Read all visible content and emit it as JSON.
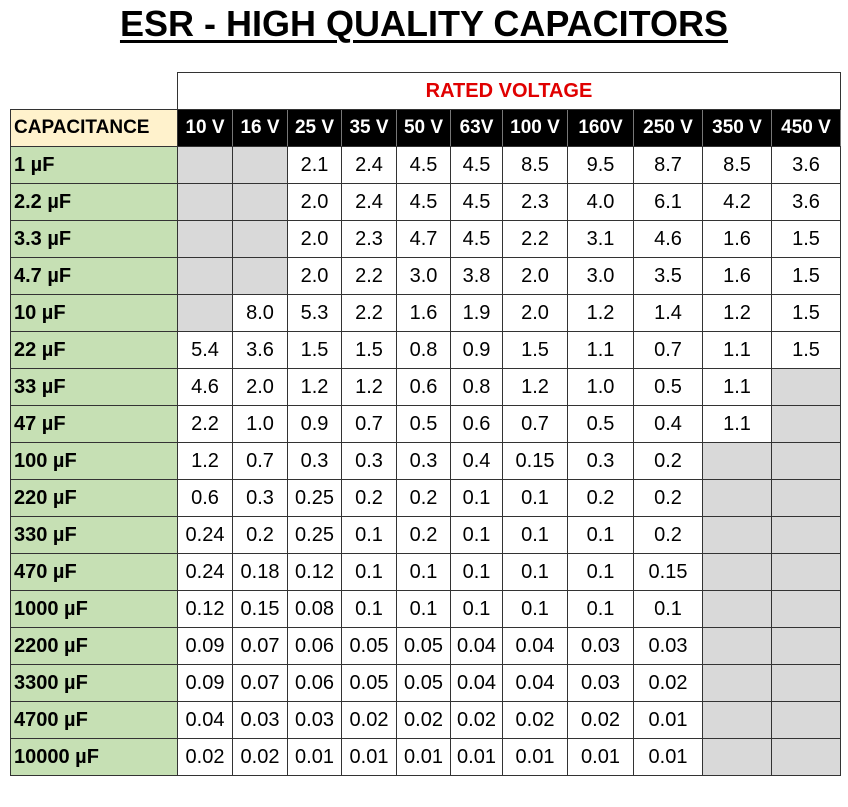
{
  "title": "ESR - HIGH QUALITY CAPACITORS",
  "rated_voltage_label": "RATED VOLTAGE",
  "capacitance_label": "CAPACITANCE",
  "colors": {
    "header_bg": "#000000",
    "cap_bg": "#c6e0b4",
    "cap_header_bg": "#fff2cc",
    "na_bg": "#d9d9d9",
    "rated_text": "#e00000"
  },
  "voltages": [
    "10 V",
    "16 V",
    "25 V",
    "35 V",
    "50 V",
    "63V",
    "100 V",
    "160V",
    "250 V",
    "350 V",
    "450 V"
  ],
  "rows": [
    {
      "cap": "1 µF",
      "values": [
        "",
        "",
        "2.1",
        "2.4",
        "4.5",
        "4.5",
        "8.5",
        "9.5",
        "8.7",
        "8.5",
        "3.6"
      ]
    },
    {
      "cap": "2.2 µF",
      "values": [
        "",
        "",
        "2.0",
        "2.4",
        "4.5",
        "4.5",
        "2.3",
        "4.0",
        "6.1",
        "4.2",
        "3.6"
      ]
    },
    {
      "cap": "3.3 µF",
      "values": [
        "",
        "",
        "2.0",
        "2.3",
        "4.7",
        "4.5",
        "2.2",
        "3.1",
        "4.6",
        "1.6",
        "1.5"
      ]
    },
    {
      "cap": "4.7 µF",
      "values": [
        "",
        "",
        "2.0",
        "2.2",
        "3.0",
        "3.8",
        "2.0",
        "3.0",
        "3.5",
        "1.6",
        "1.5"
      ]
    },
    {
      "cap": "10 µF",
      "values": [
        "",
        "8.0",
        "5.3",
        "2.2",
        "1.6",
        "1.9",
        "2.0",
        "1.2",
        "1.4",
        "1.2",
        "1.5"
      ]
    },
    {
      "cap": "22 µF",
      "values": [
        "5.4",
        "3.6",
        "1.5",
        "1.5",
        "0.8",
        "0.9",
        "1.5",
        "1.1",
        "0.7",
        "1.1",
        "1.5"
      ]
    },
    {
      "cap": "33 µF",
      "values": [
        "4.6",
        "2.0",
        "1.2",
        "1.2",
        "0.6",
        "0.8",
        "1.2",
        "1.0",
        "0.5",
        "1.1",
        ""
      ]
    },
    {
      "cap": "47 µF",
      "values": [
        "2.2",
        "1.0",
        "0.9",
        "0.7",
        "0.5",
        "0.6",
        "0.7",
        "0.5",
        "0.4",
        "1.1",
        ""
      ]
    },
    {
      "cap": "100 µF",
      "values": [
        "1.2",
        "0.7",
        "0.3",
        "0.3",
        "0.3",
        "0.4",
        "0.15",
        "0.3",
        "0.2",
        "",
        ""
      ]
    },
    {
      "cap": "220 µF",
      "values": [
        "0.6",
        "0.3",
        "0.25",
        "0.2",
        "0.2",
        "0.1",
        "0.1",
        "0.2",
        "0.2",
        "",
        ""
      ]
    },
    {
      "cap": "330 µF",
      "values": [
        "0.24",
        "0.2",
        "0.25",
        "0.1",
        "0.2",
        "0.1",
        "0.1",
        "0.1",
        "0.2",
        "",
        ""
      ]
    },
    {
      "cap": "470 µF",
      "values": [
        "0.24",
        "0.18",
        "0.12",
        "0.1",
        "0.1",
        "0.1",
        "0.1",
        "0.1",
        "0.15",
        "",
        ""
      ]
    },
    {
      "cap": "1000 µF",
      "values": [
        "0.12",
        "0.15",
        "0.08",
        "0.1",
        "0.1",
        "0.1",
        "0.1",
        "0.1",
        "0.1",
        "",
        ""
      ]
    },
    {
      "cap": "2200 µF",
      "values": [
        "0.09",
        "0.07",
        "0.06",
        "0.05",
        "0.05",
        "0.04",
        "0.04",
        "0.03",
        "0.03",
        "",
        ""
      ]
    },
    {
      "cap": "3300 µF",
      "values": [
        "0.09",
        "0.07",
        "0.06",
        "0.05",
        "0.05",
        "0.04",
        "0.04",
        "0.03",
        "0.02",
        "",
        ""
      ]
    },
    {
      "cap": "4700 µF",
      "values": [
        "0.04",
        "0.03",
        "0.03",
        "0.02",
        "0.02",
        "0.02",
        "0.02",
        "0.02",
        "0.01",
        "",
        ""
      ]
    },
    {
      "cap": "10000 µF",
      "values": [
        "0.02",
        "0.02",
        "0.01",
        "0.01",
        "0.01",
        "0.01",
        "0.01",
        "0.01",
        "0.01",
        "",
        ""
      ]
    }
  ]
}
